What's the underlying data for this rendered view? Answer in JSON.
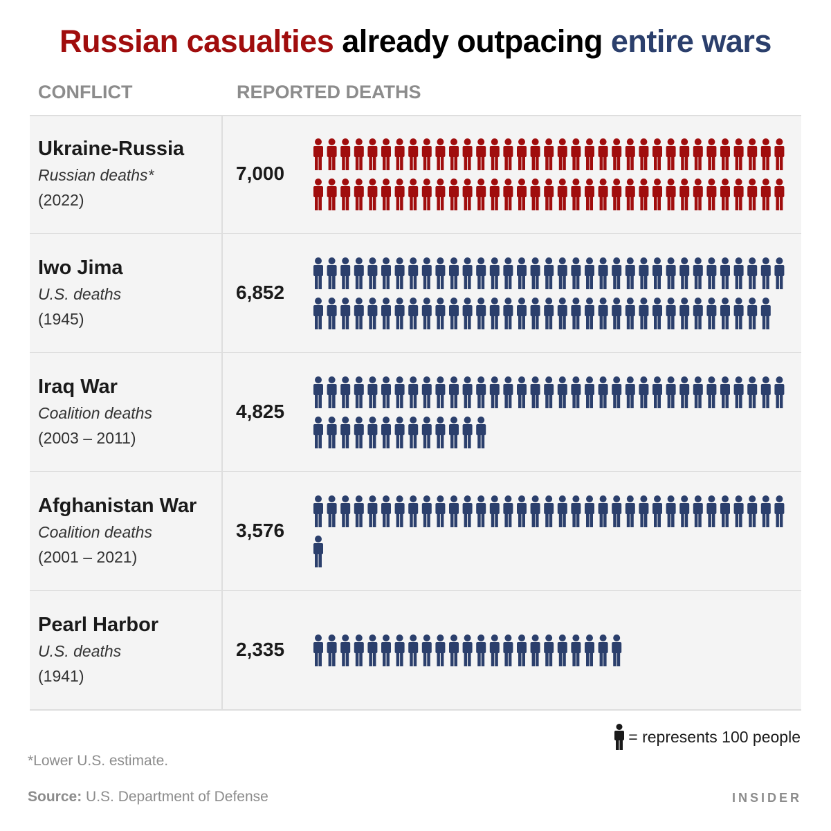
{
  "title": {
    "part1": "Russian casualties",
    "part2": " already outpacing ",
    "part3": "entire wars",
    "color_red": "#a00d0d",
    "color_blue": "#2b3f6c"
  },
  "columns": {
    "conflict": "CONFLICT",
    "deaths": "REPORTED DEATHS"
  },
  "rows": [
    {
      "name": "Ukraine-Russia",
      "subtitle": "Russian deaths*",
      "years": "(2022)",
      "count_label": "7,000"
    },
    {
      "name": "Iwo Jima",
      "subtitle": "U.S. deaths",
      "years": "(1945)",
      "count_label": "6,852"
    },
    {
      "name": "Iraq War",
      "subtitle": "Coalition deaths",
      "years": "(2003 – 2011)",
      "count_label": "4,825"
    },
    {
      "name": "Afghanistan War",
      "subtitle": "Coalition deaths",
      "years": "(2001 – 2021)",
      "count_label": "3,576"
    },
    {
      "name": "Pearl Harbor",
      "subtitle": "U.S. deaths",
      "years": "(1941)",
      "count_label": "2,335"
    }
  ],
  "legend": {
    "text": "= represents 100 people",
    "icon": "person-icon"
  },
  "footnote": "*Lower U.S. estimate.",
  "source": {
    "label": "Source:",
    "text": " U.S. Department of Defense"
  },
  "brand": "INSIDER",
  "chart_data": {
    "type": "table",
    "unit_per_icon": 100,
    "icons_per_row_max": 35,
    "categories": [
      "Ukraine-Russia",
      "Iwo Jima",
      "Iraq War",
      "Afghanistan War",
      "Pearl Harbor"
    ],
    "values": [
      7000,
      6852,
      4825,
      3576,
      2335
    ],
    "series": [
      {
        "name": "Russian deaths*",
        "values": [
          7000,
          null,
          null,
          null,
          null
        ],
        "color": "#a00d0d"
      },
      {
        "name": "U.S. / Coalition deaths",
        "values": [
          null,
          6852,
          4825,
          3576,
          2335
        ],
        "color": "#2b3f6c"
      }
    ]
  }
}
